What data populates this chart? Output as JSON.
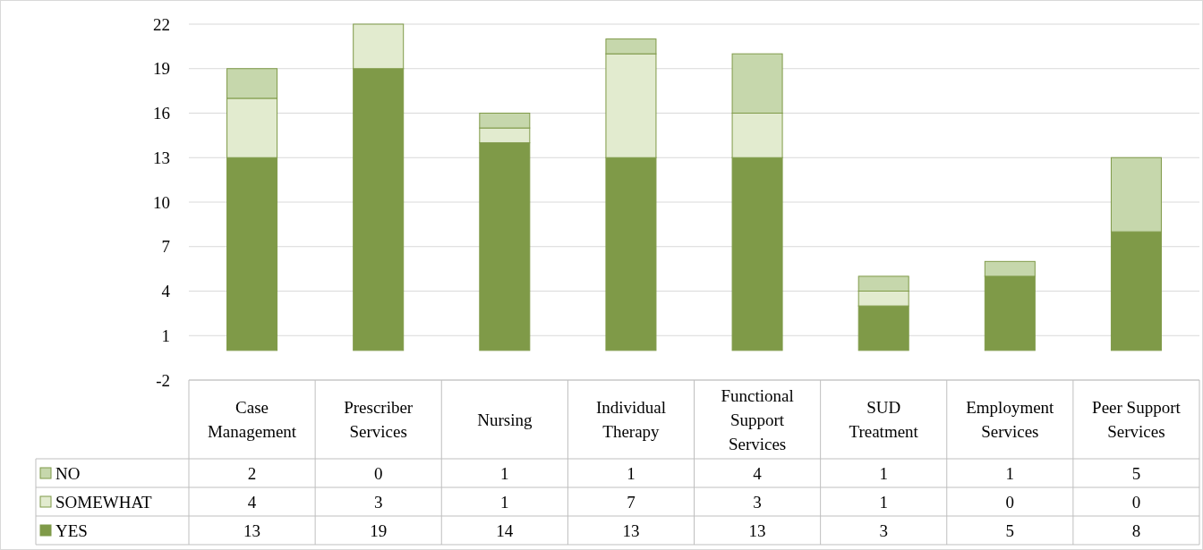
{
  "chart_data": {
    "type": "bar",
    "stacked": true,
    "categories": [
      "Case Management",
      "Prescriber Services",
      "Nursing",
      "Individual Therapy",
      "Functional Support Services",
      "SUD Treatment",
      "Employment Services",
      "Peer Support Services"
    ],
    "series": [
      {
        "name": "YES",
        "color": "#7f9a48",
        "values": [
          13,
          19,
          14,
          13,
          13,
          3,
          5,
          8
        ]
      },
      {
        "name": "SOMEWHAT",
        "color": "#e2ebcf",
        "values": [
          4,
          3,
          1,
          7,
          3,
          1,
          0,
          0
        ]
      },
      {
        "name": "NO",
        "color": "#c6d7ac",
        "values": [
          2,
          0,
          1,
          1,
          4,
          1,
          1,
          5
        ]
      }
    ],
    "ylim": [
      -2,
      22
    ],
    "yticks": [
      -2,
      1,
      4,
      7,
      10,
      13,
      16,
      19,
      22
    ],
    "grid": "y",
    "legend": "bottom",
    "data_labels": true
  }
}
